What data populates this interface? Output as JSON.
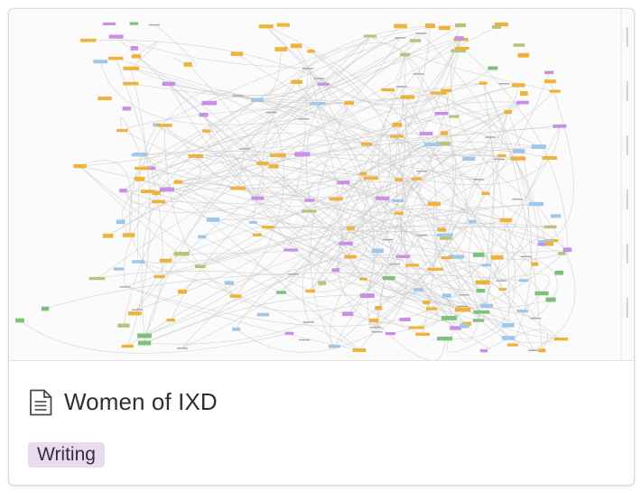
{
  "card": {
    "title": "Women of IXD",
    "icon": "document-icon",
    "tag": {
      "label": "Writing",
      "color": "#e7dcef"
    }
  },
  "cover": {
    "description_kind": "network-diagram-thumbnail",
    "node_colors": [
      "#f0b23a",
      "#c98fe6",
      "#9fc7ea",
      "#bcc27a",
      "#7fc17a"
    ]
  }
}
